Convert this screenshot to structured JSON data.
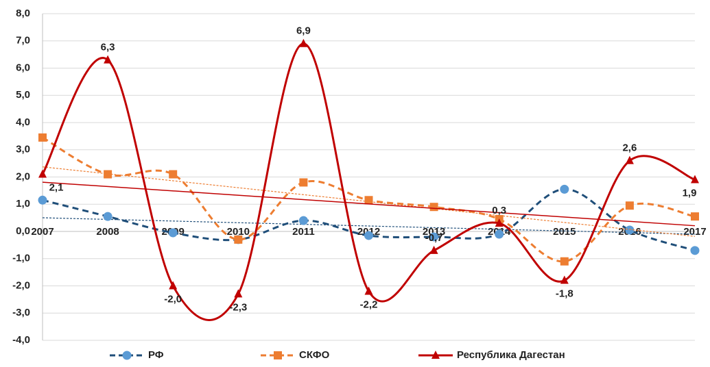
{
  "chart_data": {
    "type": "line",
    "categories": [
      "2007",
      "2008",
      "2009",
      "2010",
      "2011",
      "2012",
      "2013",
      "2014",
      "2015",
      "2016",
      "2017"
    ],
    "ylim": [
      -4,
      8
    ],
    "yticks": [
      {
        "value": -4,
        "label": "-4,0"
      },
      {
        "value": -3,
        "label": "-3,0"
      },
      {
        "value": -2,
        "label": "-2,0"
      },
      {
        "value": -1,
        "label": "-1,0"
      },
      {
        "value": 0,
        "label": "0,0"
      },
      {
        "value": 1,
        "label": "1,0"
      },
      {
        "value": 2,
        "label": "2,0"
      },
      {
        "value": 3,
        "label": "3,0"
      },
      {
        "value": 4,
        "label": "4,0"
      },
      {
        "value": 5,
        "label": "5,0"
      },
      {
        "value": 6,
        "label": "6,0"
      },
      {
        "value": 7,
        "label": "7,0"
      },
      {
        "value": 8,
        "label": "8,0"
      }
    ],
    "grid": true,
    "smooth": true,
    "trendline": true,
    "legend": "bottom",
    "series": [
      {
        "name": "РФ",
        "color": "#1f4e79",
        "dash": true,
        "marker": "circle",
        "values": [
          1.15,
          0.55,
          -0.05,
          -0.3,
          0.4,
          -0.15,
          -0.2,
          -0.1,
          1.55,
          0.05,
          -0.7
        ]
      },
      {
        "name": "СКФО",
        "color": "#ed7d31",
        "dash": true,
        "marker": "square",
        "values": [
          3.45,
          2.1,
          2.1,
          -0.3,
          1.8,
          1.15,
          0.9,
          0.45,
          -1.1,
          0.95,
          0.55
        ]
      },
      {
        "name": "Республика Дагестан",
        "color": "#c00000",
        "dash": false,
        "marker": "triangle",
        "values": [
          2.1,
          6.3,
          -2.0,
          -2.3,
          6.9,
          -2.2,
          -0.7,
          0.3,
          -1.8,
          2.6,
          1.9
        ],
        "value_labels": [
          "2,1",
          "6,3",
          "-2,0",
          "-2,3",
          "6,9",
          "-2,2",
          "-0,7",
          "0,3",
          "-1,8",
          "2,6",
          "1,9"
        ]
      }
    ]
  }
}
